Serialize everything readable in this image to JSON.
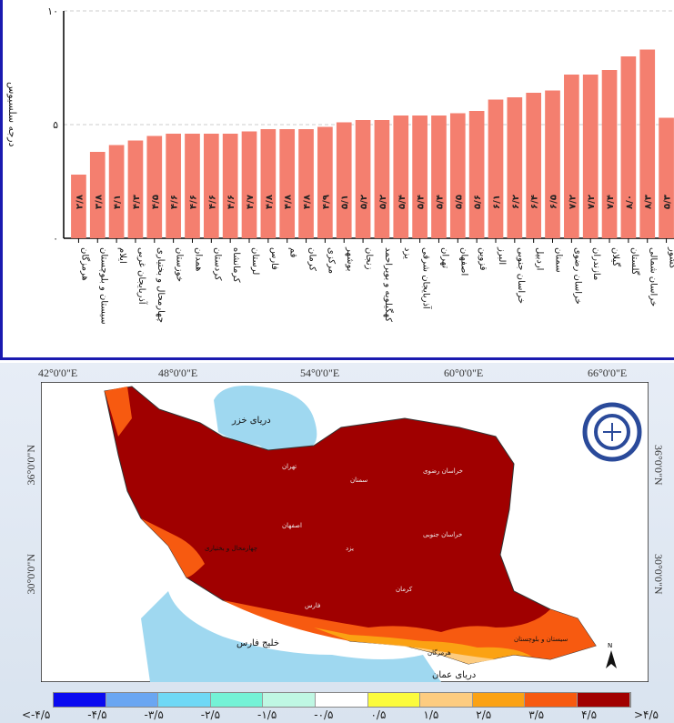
{
  "chart_data": {
    "type": "bar",
    "title": "",
    "ylabel": "درجه سلسیوس",
    "xlabel": "",
    "ylim": [
      0,
      10
    ],
    "yticks": [
      {
        "v": 0,
        "label": "۰"
      },
      {
        "v": 5,
        "label": "۵"
      },
      {
        "v": 10,
        "label": "۱۰"
      }
    ],
    "grid": "dashed horizontal at 5 and 10",
    "bar_color": "#f47f6f",
    "categories": [
      "هرمزگان",
      "سیستان و بلوچستان",
      "ایلام",
      "آذربایجان غربی",
      "چهارمحال و بختیاری",
      "خوزستان",
      "همدان",
      "کردستان",
      "کرمانشاه",
      "لرستان",
      "فارس",
      "قم",
      "کرمان",
      "مرکزی",
      "بوشهر",
      "زنجان",
      "کهگیلویه و بویراحمد",
      "یزد",
      "آذربایجان شرقی",
      "تهران",
      "اصفهان",
      "قزوین",
      "البرز",
      "خراسان جنوبی",
      "اردبیل",
      "سمنان",
      "خراسان رضوی",
      "مازندران",
      "گیلان",
      "گلستان",
      "خراسان شمالی",
      "کشور"
    ],
    "values": [
      2.8,
      3.8,
      4.1,
      4.3,
      4.5,
      4.6,
      4.6,
      4.6,
      4.6,
      4.7,
      4.8,
      4.8,
      4.8,
      4.9,
      5.1,
      5.2,
      5.2,
      5.4,
      5.4,
      5.4,
      5.5,
      5.6,
      6.1,
      6.2,
      6.4,
      6.5,
      7.2,
      7.2,
      7.4,
      8.0,
      8.3,
      5.3
    ],
    "value_labels": [
      "۲/۸",
      "۳/۸",
      "۴/۱",
      "۴/۳",
      "۴/۵",
      "۴/۶",
      "۴/۶",
      "۴/۶",
      "۴/۶",
      "۴/۷",
      "۴/۸",
      "۴/۸",
      "۴/۸",
      "۴/۹",
      "۵/۱",
      "۵/۲",
      "۵/۲",
      "۵/۴",
      "۵/۴",
      "۵/۴",
      "۵/۵",
      "۵/۶",
      "۶/۱",
      "۶/۲",
      "۶/۴",
      "۶/۵",
      "۷/۲",
      "۷/۲",
      "۷/۴",
      "۸/۰",
      "۸/۳",
      "۵/۳"
    ]
  },
  "map": {
    "lon_labels": [
      "42°0'0\"E",
      "48°0'0\"E",
      "54°0'0\"E",
      "60°0'0\"E",
      "66°0'0\"E"
    ],
    "lat_labels": [
      "36°0'0\"N",
      "30°0'0\"N"
    ],
    "caspian": "دریای خزر",
    "gulf": "خلیج فارس",
    "oman": "دریای عمان",
    "provinces": {
      "khr": "خراسان رضوی",
      "khs": "خراسان جنوبی",
      "semnan": "سمنان",
      "yazd": "یزد",
      "isfahan": "اصفهان",
      "kerman": "کرمان",
      "fars": "فارس",
      "sistan": "سیستان و بلوچستان",
      "hormozgan": "هرمزگان",
      "chb": "چهارمحال و بختیاری",
      "tehran": "تهران"
    },
    "north": "N",
    "legend_colors": [
      "#0a0af0",
      "#6aa6f2",
      "#6fd8f5",
      "#74f2d6",
      "#bff7e3",
      "#ffffff",
      "#fbfb3c",
      "#fdcc80",
      "#fba213",
      "#f75a10",
      "#a10000"
    ],
    "legend_labels": [
      "<-۴/۵",
      "-۴/۵",
      "-۳/۵",
      "-۲/۵",
      "-۱/۵",
      "-۰/۵",
      "۰/۵",
      "۱/۵",
      "۲/۵",
      "۳/۵",
      "۴/۵",
      ">۴/۵"
    ]
  }
}
